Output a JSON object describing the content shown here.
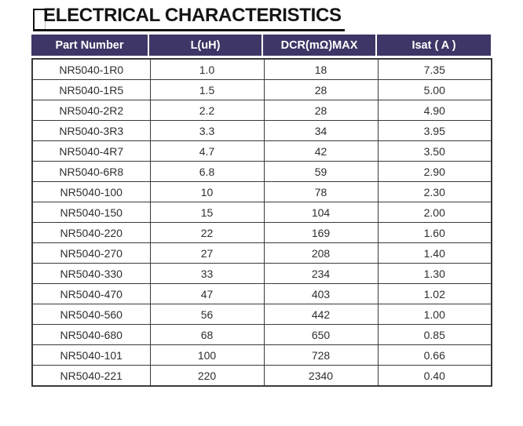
{
  "title": {
    "text": "ELECTRICAL CHARACTERISTICS"
  },
  "colors": {
    "header_background": "#3d3666",
    "header_text": "#ffffff",
    "table_border": "#3a3a3a",
    "body_text": "#2e2e2e",
    "title_text": "#141414"
  },
  "table": {
    "headers": [
      "Part Number",
      "L(uH)",
      "DCR(mΩ)MAX",
      "Isat ( A )"
    ],
    "rows": [
      [
        "NR5040-1R0",
        "1.0",
        "18",
        "7.35"
      ],
      [
        "NR5040-1R5",
        "1.5",
        "28",
        "5.00"
      ],
      [
        "NR5040-2R2",
        "2.2",
        "28",
        "4.90"
      ],
      [
        "NR5040-3R3",
        "3.3",
        "34",
        "3.95"
      ],
      [
        "NR5040-4R7",
        "4.7",
        "42",
        "3.50"
      ],
      [
        "NR5040-6R8",
        "6.8",
        "59",
        "2.90"
      ],
      [
        "NR5040-100",
        "10",
        "78",
        "2.30"
      ],
      [
        "NR5040-150",
        "15",
        "104",
        "2.00"
      ],
      [
        "NR5040-220",
        "22",
        "169",
        "1.60"
      ],
      [
        "NR5040-270",
        "27",
        "208",
        "1.40"
      ],
      [
        "NR5040-330",
        "33",
        "234",
        "1.30"
      ],
      [
        "NR5040-470",
        "47",
        "403",
        "1.02"
      ],
      [
        "NR5040-560",
        "56",
        "442",
        "1.00"
      ],
      [
        "NR5040-680",
        "68",
        "650",
        "0.85"
      ],
      [
        "NR5040-101",
        "100",
        "728",
        "0.66"
      ],
      [
        "NR5040-221",
        "220",
        "2340",
        "0.40"
      ]
    ],
    "column_names": [
      "part-number-cell",
      "inductance-cell",
      "dcr-cell",
      "isat-cell"
    ]
  }
}
